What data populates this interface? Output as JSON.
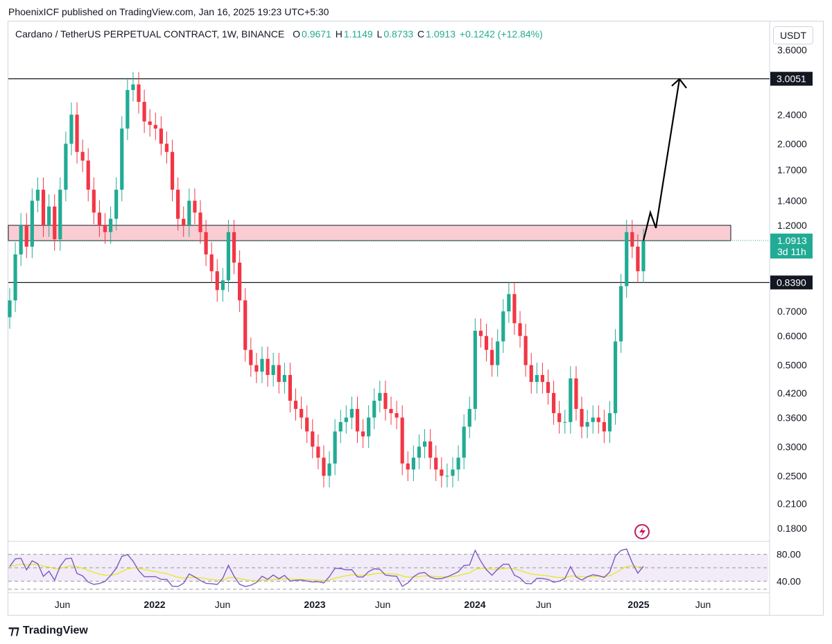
{
  "header": {
    "published_by": "PhoenixICF published on TradingView.com, Jan 16, 2025 19:23 UTC+5:30"
  },
  "symbol": {
    "title": "Cardano / TetherUS PERPETUAL CONTRACT, 1W, BINANCE",
    "o_label": "O",
    "o_value": "0.9671",
    "h_label": "H",
    "h_value": "1.1149",
    "l_label": "L",
    "l_value": "0.8733",
    "c_label": "C",
    "c_value": "1.0913",
    "change": "+0.1242 (+12.84%)"
  },
  "toolbar": {
    "currency": "USDT"
  },
  "price_axis": {
    "ticks": [
      "3.6000",
      "3.0051",
      "2.4000",
      "2.0000",
      "1.7000",
      "1.4000",
      "1.2000",
      "1.0913",
      "0.8390",
      "0.7000",
      "0.6000",
      "0.5000",
      "0.4200",
      "0.3600",
      "0.3000",
      "0.2500",
      "0.2100",
      "0.1800"
    ],
    "tick_values": [
      3.6,
      2.4,
      2.0,
      1.7,
      1.4,
      1.2,
      0.7,
      0.6,
      0.5,
      0.42,
      0.36,
      0.3,
      0.25,
      0.21,
      0.18
    ],
    "last_price_label": "1.0913",
    "countdown": "3d 11h",
    "level_top_label": "3.0051",
    "level_bottom_label": "0.8390"
  },
  "time_axis": {
    "labels": [
      "Jun",
      "2022",
      "Jun",
      "2023",
      "Jun",
      "2024",
      "Jun",
      "2025",
      "Jun"
    ],
    "bold": [
      false,
      true,
      false,
      true,
      false,
      true,
      false,
      true,
      false
    ]
  },
  "rsi_axis": {
    "labels": [
      "80.00",
      "40.00"
    ]
  },
  "footer": {
    "brand": "TradingView"
  },
  "colors": {
    "up": "#22ab94",
    "down": "#f23645",
    "zone": "#f7b8c0",
    "rsi": "#7e57c2",
    "rsi_ma": "#e8e82a"
  },
  "chart_data": {
    "type": "candlestick",
    "scale": "log",
    "ylim": [
      0.16,
      3.9
    ],
    "horizontal_levels": [
      3.0051,
      0.839
    ],
    "resistance_zone": [
      1.09,
      1.2
    ],
    "last_price": 1.0913,
    "projection": [
      [
        1.09,
        1.3,
        1.18,
        3.0
      ]
    ],
    "candles_close": [
      0.75,
      1.0,
      1.2,
      1.05,
      1.4,
      1.5,
      1.2,
      1.35,
      1.1,
      1.5,
      2.0,
      2.4,
      1.9,
      1.8,
      1.5,
      1.3,
      1.2,
      1.15,
      1.25,
      1.5,
      2.2,
      2.8,
      2.9,
      2.6,
      2.3,
      2.25,
      2.2,
      2.0,
      1.9,
      1.5,
      1.25,
      1.2,
      1.4,
      1.3,
      1.15,
      1.0,
      0.9,
      0.8,
      0.85,
      1.15,
      0.95,
      0.75,
      0.55,
      0.5,
      0.48,
      0.52,
      0.47,
      0.5,
      0.45,
      0.47,
      0.4,
      0.38,
      0.36,
      0.33,
      0.3,
      0.28,
      0.25,
      0.27,
      0.33,
      0.35,
      0.36,
      0.38,
      0.33,
      0.32,
      0.36,
      0.4,
      0.42,
      0.38,
      0.37,
      0.36,
      0.27,
      0.26,
      0.28,
      0.3,
      0.31,
      0.28,
      0.26,
      0.25,
      0.25,
      0.26,
      0.28,
      0.34,
      0.38,
      0.62,
      0.6,
      0.55,
      0.5,
      0.58,
      0.7,
      0.78,
      0.65,
      0.6,
      0.5,
      0.45,
      0.47,
      0.45,
      0.42,
      0.37,
      0.35,
      0.35,
      0.46,
      0.38,
      0.34,
      0.35,
      0.36,
      0.35,
      0.33,
      0.37,
      0.58,
      0.82,
      1.15,
      1.05,
      0.9,
      1.09
    ],
    "rsi_ticks": [
      80,
      40
    ]
  }
}
